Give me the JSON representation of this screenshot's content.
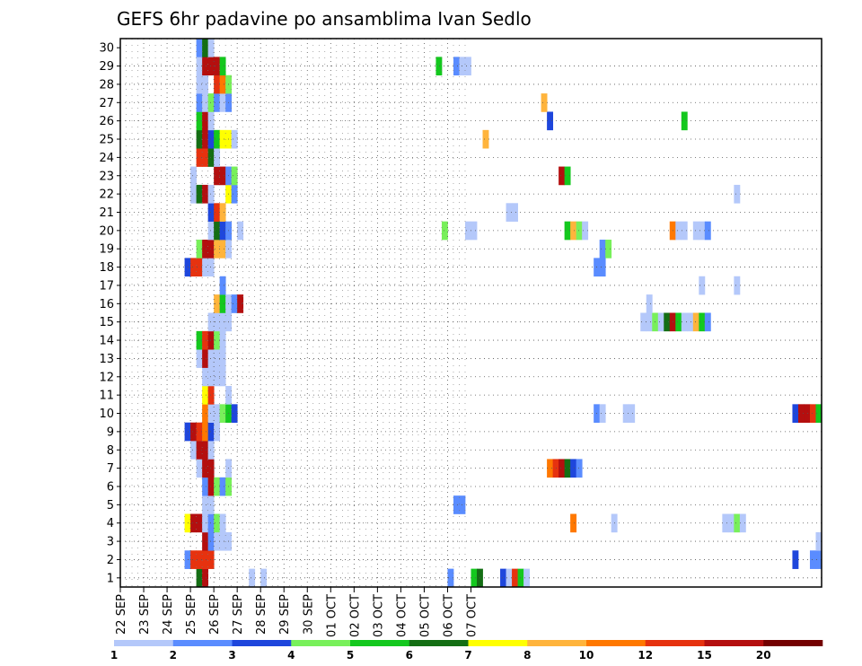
{
  "chart_data": {
    "type": "heatmap",
    "title": "GEFS 6hr padavine po ansamblima Ivan Sedlo",
    "xlabel": "",
    "ylabel": "",
    "x_ticks": [
      "22 SEP",
      "23 SEP",
      "24 SEP",
      "25 SEP",
      "26 SEP",
      "27 SEP",
      "28 SEP",
      "29 SEP",
      "30 SEP",
      "01 OCT",
      "02 OCT",
      "03 OCT",
      "04 OCT",
      "05 OCT",
      "06 OCT",
      "07 OCT"
    ],
    "y_ticks": [
      "1",
      "2",
      "3",
      "4",
      "5",
      "6",
      "7",
      "8",
      "9",
      "10",
      "11",
      "12",
      "13",
      "14",
      "15",
      "16",
      "17",
      "18",
      "19",
      "20",
      "21",
      "22",
      "23",
      "24",
      "25",
      "26",
      "27",
      "28",
      "29",
      "30"
    ],
    "x_unit": "6-hour step from 22 SEP 00Z",
    "ylim": [
      0,
      30
    ],
    "grid": true,
    "legend": "bottom",
    "colorbar": {
      "levels": [
        "1",
        "2",
        "3",
        "4",
        "5",
        "6",
        "7",
        "8",
        "10",
        "12",
        "15",
        "20"
      ],
      "colors": [
        "#b4c8fa",
        "#5a8cff",
        "#1e46dc",
        "#78f05a",
        "#14c81e",
        "#146e14",
        "#ffff00",
        "#ffb43c",
        "#ff7800",
        "#e6320f",
        "#b40f0f",
        "#730000"
      ]
    },
    "cells": [
      {
        "member": 1,
        "values": [
          [
            13,
            6
          ],
          [
            14,
            11
          ],
          [
            22,
            1
          ],
          [
            24,
            1
          ],
          [
            56,
            2
          ],
          [
            60,
            5
          ],
          [
            61,
            6
          ],
          [
            65,
            3
          ],
          [
            66,
            1
          ],
          [
            67,
            10
          ],
          [
            68,
            5
          ],
          [
            69,
            1
          ]
        ]
      },
      {
        "member": 2,
        "values": [
          [
            11,
            2
          ],
          [
            12,
            10
          ],
          [
            13,
            10
          ],
          [
            14,
            10
          ],
          [
            15,
            10
          ],
          [
            115,
            3
          ],
          [
            118,
            2
          ],
          [
            119,
            2
          ]
        ]
      },
      {
        "member": 3,
        "values": [
          [
            14,
            11
          ],
          [
            15,
            2
          ],
          [
            16,
            1
          ],
          [
            17,
            1
          ],
          [
            18,
            1
          ],
          [
            119,
            1
          ]
        ]
      },
      {
        "member": 4,
        "values": [
          [
            11,
            7
          ],
          [
            12,
            11
          ],
          [
            13,
            11
          ],
          [
            14,
            1
          ],
          [
            15,
            2
          ],
          [
            16,
            4
          ],
          [
            17,
            1
          ],
          [
            77,
            9
          ],
          [
            84,
            1
          ],
          [
            103,
            1
          ],
          [
            104,
            1
          ],
          [
            105,
            4
          ],
          [
            106,
            1
          ]
        ]
      },
      {
        "member": 5,
        "values": [
          [
            14,
            1
          ],
          [
            15,
            1
          ],
          [
            57,
            2
          ],
          [
            58,
            2
          ]
        ]
      },
      {
        "member": 6,
        "values": [
          [
            14,
            2
          ],
          [
            15,
            11
          ],
          [
            16,
            4
          ],
          [
            17,
            2
          ],
          [
            18,
            4
          ]
        ]
      },
      {
        "member": 7,
        "values": [
          [
            13,
            1
          ],
          [
            14,
            11
          ],
          [
            15,
            11
          ],
          [
            18,
            1
          ],
          [
            73,
            9
          ],
          [
            74,
            10
          ],
          [
            75,
            11
          ],
          [
            76,
            6
          ],
          [
            77,
            3
          ],
          [
            78,
            2
          ]
        ]
      },
      {
        "member": 8,
        "values": [
          [
            12,
            1
          ],
          [
            13,
            11
          ],
          [
            14,
            11
          ],
          [
            15,
            1
          ]
        ]
      },
      {
        "member": 9,
        "values": [
          [
            11,
            3
          ],
          [
            12,
            11
          ],
          [
            13,
            10
          ],
          [
            14,
            9
          ],
          [
            15,
            3
          ],
          [
            16,
            1
          ]
        ]
      },
      {
        "member": 10,
        "values": [
          [
            14,
            9
          ],
          [
            15,
            1
          ],
          [
            16,
            1
          ],
          [
            17,
            4
          ],
          [
            18,
            5
          ],
          [
            19,
            3
          ],
          [
            81,
            2
          ],
          [
            82,
            1
          ],
          [
            86,
            1
          ],
          [
            87,
            1
          ],
          [
            115,
            3
          ],
          [
            116,
            11
          ],
          [
            117,
            11
          ],
          [
            118,
            10
          ],
          [
            119,
            5
          ]
        ]
      },
      {
        "member": 11,
        "values": [
          [
            14,
            7
          ],
          [
            15,
            10
          ],
          [
            18,
            1
          ]
        ]
      },
      {
        "member": 12,
        "values": [
          [
            14,
            1
          ],
          [
            15,
            1
          ],
          [
            16,
            1
          ],
          [
            17,
            1
          ]
        ]
      },
      {
        "member": 13,
        "values": [
          [
            13,
            1
          ],
          [
            14,
            11
          ],
          [
            15,
            1
          ],
          [
            16,
            1
          ],
          [
            17,
            1
          ]
        ]
      },
      {
        "member": 14,
        "values": [
          [
            13,
            5
          ],
          [
            14,
            10
          ],
          [
            15,
            11
          ],
          [
            16,
            4
          ],
          [
            17,
            1
          ]
        ]
      },
      {
        "member": 15,
        "values": [
          [
            15,
            1
          ],
          [
            16,
            1
          ],
          [
            17,
            1
          ],
          [
            18,
            1
          ],
          [
            89,
            1
          ],
          [
            90,
            1
          ],
          [
            91,
            4
          ],
          [
            92,
            1
          ],
          [
            93,
            6
          ],
          [
            94,
            11
          ],
          [
            95,
            5
          ],
          [
            96,
            1
          ],
          [
            97,
            1
          ],
          [
            98,
            8
          ],
          [
            99,
            5
          ],
          [
            100,
            2
          ]
        ]
      },
      {
        "member": 16,
        "values": [
          [
            16,
            8
          ],
          [
            17,
            5
          ],
          [
            18,
            1
          ],
          [
            19,
            2
          ],
          [
            20,
            11
          ],
          [
            90,
            1
          ]
        ]
      },
      {
        "member": 17,
        "values": [
          [
            17,
            2
          ],
          [
            99,
            1
          ],
          [
            105,
            1
          ]
        ]
      },
      {
        "member": 18,
        "values": [
          [
            11,
            3
          ],
          [
            12,
            10
          ],
          [
            13,
            10
          ],
          [
            14,
            1
          ],
          [
            15,
            1
          ],
          [
            81,
            2
          ],
          [
            82,
            2
          ]
        ]
      },
      {
        "member": 19,
        "values": [
          [
            13,
            4
          ],
          [
            14,
            11
          ],
          [
            15,
            11
          ],
          [
            16,
            8
          ],
          [
            17,
            8
          ],
          [
            18,
            1
          ],
          [
            82,
            2
          ],
          [
            83,
            4
          ]
        ]
      },
      {
        "member": 20,
        "values": [
          [
            15,
            1
          ],
          [
            16,
            6
          ],
          [
            17,
            3
          ],
          [
            18,
            2
          ],
          [
            20,
            1
          ],
          [
            55,
            4
          ],
          [
            59,
            1
          ],
          [
            60,
            1
          ],
          [
            76,
            5
          ],
          [
            77,
            8
          ],
          [
            78,
            4
          ],
          [
            79,
            1
          ],
          [
            94,
            9
          ],
          [
            95,
            1
          ],
          [
            96,
            1
          ],
          [
            98,
            1
          ],
          [
            99,
            1
          ],
          [
            100,
            2
          ]
        ]
      },
      {
        "member": 21,
        "values": [
          [
            15,
            3
          ],
          [
            16,
            10
          ],
          [
            17,
            8
          ],
          [
            66,
            1
          ],
          [
            67,
            1
          ]
        ]
      },
      {
        "member": 22,
        "values": [
          [
            12,
            1
          ],
          [
            13,
            6
          ],
          [
            14,
            11
          ],
          [
            15,
            1
          ],
          [
            18,
            7
          ],
          [
            19,
            2
          ],
          [
            105,
            1
          ]
        ]
      },
      {
        "member": 23,
        "values": [
          [
            12,
            1
          ],
          [
            16,
            11
          ],
          [
            17,
            11
          ],
          [
            18,
            2
          ],
          [
            19,
            4
          ],
          [
            75,
            11
          ],
          [
            76,
            5
          ]
        ]
      },
      {
        "member": 24,
        "values": [
          [
            13,
            10
          ],
          [
            14,
            10
          ],
          [
            15,
            6
          ],
          [
            16,
            1
          ]
        ]
      },
      {
        "member": 25,
        "values": [
          [
            13,
            6
          ],
          [
            14,
            11
          ],
          [
            15,
            3
          ],
          [
            16,
            5
          ],
          [
            17,
            7
          ],
          [
            18,
            7
          ],
          [
            19,
            1
          ],
          [
            62,
            8
          ]
        ]
      },
      {
        "member": 26,
        "values": [
          [
            13,
            5
          ],
          [
            14,
            11
          ],
          [
            15,
            1
          ],
          [
            73,
            3
          ],
          [
            96,
            5
          ]
        ]
      },
      {
        "member": 27,
        "values": [
          [
            13,
            2
          ],
          [
            14,
            1
          ],
          [
            15,
            4
          ],
          [
            16,
            2
          ],
          [
            17,
            1
          ],
          [
            18,
            2
          ],
          [
            72,
            8
          ]
        ]
      },
      {
        "member": 28,
        "values": [
          [
            13,
            1
          ],
          [
            14,
            1
          ],
          [
            16,
            10
          ],
          [
            17,
            9
          ],
          [
            18,
            4
          ]
        ]
      },
      {
        "member": 29,
        "values": [
          [
            13,
            1
          ],
          [
            14,
            11
          ],
          [
            15,
            11
          ],
          [
            16,
            11
          ],
          [
            17,
            5
          ],
          [
            54,
            5
          ],
          [
            57,
            2
          ],
          [
            58,
            1
          ],
          [
            59,
            1
          ]
        ]
      },
      {
        "member": 30,
        "values": [
          [
            13,
            2
          ],
          [
            14,
            6
          ],
          [
            15,
            1
          ]
        ]
      }
    ]
  }
}
